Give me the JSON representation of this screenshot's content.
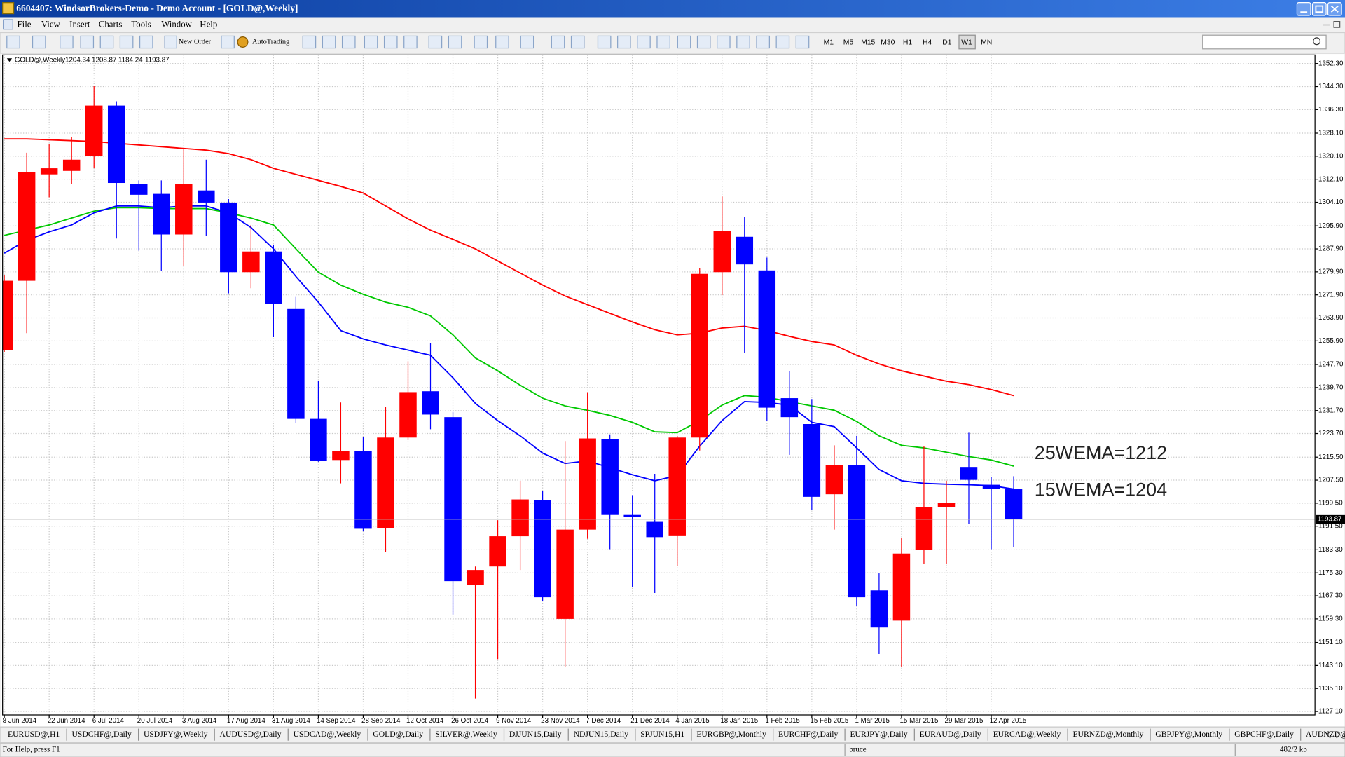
{
  "window": {
    "title": "6604407: WindsorBrokers-Demo - Demo Account - [GOLD@,Weekly]",
    "menu": [
      "File",
      "View",
      "Insert",
      "Charts",
      "Tools",
      "Window",
      "Help"
    ],
    "toolbar": {
      "new_order": "New Order",
      "autotrading": "AutoTrading",
      "timeframes": [
        "M1",
        "M5",
        "M15",
        "M30",
        "H1",
        "H4",
        "D1",
        "W1",
        "MN"
      ]
    },
    "tabs": [
      "EURUSD@,H1",
      "USDCHF@,Daily",
      "USDJPY@,Weekly",
      "AUDUSD@,Daily",
      "USDCAD@,Weekly",
      "GOLD@,Daily",
      "SILVER@,Weekly",
      "DJJUN15,Daily",
      "NDJUN15,Daily",
      "SPJUN15,H1",
      "EURGBP@,Monthly",
      "EURCHF@,Daily",
      "EURJPY@,Daily",
      "EURAUD@,Daily",
      "EURCAD@,Weekly",
      "EURNZD@,Monthly",
      "GBPJPY@,Monthly",
      "GBPCHF@,Daily",
      "AUDNZD@"
    ],
    "status": {
      "help": "For Help, press F1",
      "profile": "bruce",
      "traffic": "482/2 kb"
    }
  },
  "chart_data": {
    "type": "candlestick",
    "title": "GOLD@,Weekly",
    "categories": [
      "8 Jun 2014",
      null,
      "22 Jun 2014",
      null,
      "6 Jul 2014",
      null,
      "20 Jul 2014",
      null,
      "3 Aug 2014",
      null,
      "17 Aug 2014",
      null,
      "31 Aug 2014",
      null,
      "14 Sep 2014",
      null,
      "28 Sep 2014",
      null,
      "12 Oct 2014",
      null,
      "26 Oct 2014",
      null,
      "9 Nov 2014",
      null,
      "23 Nov 2014",
      null,
      "7 Dec 2014",
      null,
      "21 Dec 2014",
      null,
      "4 Jan 2015",
      null,
      "18 Jan 2015",
      null,
      "1 Feb 2015",
      null,
      "15 Feb 2015",
      null,
      "1 Mar 2015",
      null,
      "15 Mar 2015",
      null,
      "29 Mar 2015",
      null,
      "12 Apr 2015",
      null
    ],
    "candles": [
      {
        "open": 1252.7,
        "high": 1278.9,
        "low": 1252.1,
        "close": 1276.8
      },
      {
        "open": 1276.8,
        "high": 1321.3,
        "low": 1258.6,
        "close": 1314.7
      },
      {
        "open": 1313.8,
        "high": 1324.3,
        "low": 1305.8,
        "close": 1315.9
      },
      {
        "open": 1315.0,
        "high": 1326.7,
        "low": 1310.5,
        "close": 1318.9
      },
      {
        "open": 1320.1,
        "high": 1344.6,
        "low": 1315.9,
        "close": 1337.7
      },
      {
        "open": 1337.7,
        "high": 1339.2,
        "low": 1291.5,
        "close": 1310.8
      },
      {
        "open": 1310.5,
        "high": 1311.7,
        "low": 1287.3,
        "close": 1306.7
      },
      {
        "open": 1307.0,
        "high": 1311.7,
        "low": 1280.1,
        "close": 1292.9
      },
      {
        "open": 1292.9,
        "high": 1322.8,
        "low": 1281.9,
        "close": 1310.5
      },
      {
        "open": 1308.2,
        "high": 1318.9,
        "low": 1292.4,
        "close": 1304.0
      },
      {
        "open": 1304.0,
        "high": 1305.2,
        "low": 1272.4,
        "close": 1279.8
      },
      {
        "open": 1279.8,
        "high": 1296.2,
        "low": 1274.2,
        "close": 1287.0
      },
      {
        "open": 1287.0,
        "high": 1289.4,
        "low": 1257.2,
        "close": 1268.8
      },
      {
        "open": 1267.0,
        "high": 1271.2,
        "low": 1227.3,
        "close": 1228.8
      },
      {
        "open": 1228.8,
        "high": 1241.9,
        "low": 1213.9,
        "close": 1214.2
      },
      {
        "open": 1214.5,
        "high": 1234.5,
        "low": 1206.4,
        "close": 1217.5
      },
      {
        "open": 1217.5,
        "high": 1222.6,
        "low": 1189.7,
        "close": 1190.6
      },
      {
        "open": 1190.9,
        "high": 1233.0,
        "low": 1182.6,
        "close": 1222.3
      },
      {
        "open": 1222.3,
        "high": 1248.8,
        "low": 1221.4,
        "close": 1238.1
      },
      {
        "open": 1238.4,
        "high": 1255.1,
        "low": 1225.2,
        "close": 1230.3
      },
      {
        "open": 1229.4,
        "high": 1231.2,
        "low": 1160.8,
        "close": 1172.4
      },
      {
        "open": 1171.0,
        "high": 1177.5,
        "low": 1131.6,
        "close": 1176.3
      },
      {
        "open": 1177.5,
        "high": 1193.6,
        "low": 1145.3,
        "close": 1188.0
      },
      {
        "open": 1188.0,
        "high": 1207.3,
        "low": 1176.3,
        "close": 1200.8
      },
      {
        "open": 1200.5,
        "high": 1203.8,
        "low": 1165.6,
        "close": 1166.8
      },
      {
        "open": 1159.3,
        "high": 1221.1,
        "low": 1142.6,
        "close": 1190.3
      },
      {
        "open": 1190.3,
        "high": 1238.1,
        "low": 1187.1,
        "close": 1222.0
      },
      {
        "open": 1221.7,
        "high": 1223.4,
        "low": 1183.5,
        "close": 1195.4
      },
      {
        "open": 1195.4,
        "high": 1202.3,
        "low": 1170.4,
        "close": 1194.8
      },
      {
        "open": 1193.0,
        "high": 1209.7,
        "low": 1168.3,
        "close": 1187.7
      },
      {
        "open": 1188.3,
        "high": 1222.9,
        "low": 1177.8,
        "close": 1222.3
      },
      {
        "open": 1222.3,
        "high": 1281.3,
        "low": 1217.8,
        "close": 1279.2
      },
      {
        "open": 1279.8,
        "high": 1306.1,
        "low": 1271.8,
        "close": 1294.1
      },
      {
        "open": 1292.1,
        "high": 1298.9,
        "low": 1251.8,
        "close": 1282.5
      },
      {
        "open": 1280.4,
        "high": 1284.9,
        "low": 1228.2,
        "close": 1232.7
      },
      {
        "open": 1236.0,
        "high": 1245.5,
        "low": 1216.3,
        "close": 1229.4
      },
      {
        "open": 1227.0,
        "high": 1235.7,
        "low": 1197.2,
        "close": 1201.7
      },
      {
        "open": 1202.6,
        "high": 1219.6,
        "low": 1190.3,
        "close": 1212.7
      },
      {
        "open": 1212.7,
        "high": 1222.9,
        "low": 1163.8,
        "close": 1166.8
      },
      {
        "open": 1169.2,
        "high": 1175.1,
        "low": 1147.1,
        "close": 1156.3
      },
      {
        "open": 1158.7,
        "high": 1187.4,
        "low": 1142.6,
        "close": 1182.0
      },
      {
        "open": 1183.2,
        "high": 1219.3,
        "low": 1178.4,
        "close": 1198.1
      },
      {
        "open": 1198.1,
        "high": 1207.3,
        "low": 1178.4,
        "close": 1199.6
      },
      {
        "open": 1212.1,
        "high": 1224.0,
        "low": 1192.4,
        "close": 1207.6
      },
      {
        "open": 1205.9,
        "high": 1208.5,
        "low": 1183.5,
        "close": 1204.4
      },
      {
        "open": 1204.34,
        "high": 1208.87,
        "low": 1184.24,
        "close": 1193.87
      }
    ],
    "up_color": "#ff0000",
    "down_color": "#0000ff",
    "lines": [
      {
        "color": "#ff0000",
        "values": [
          1326.1,
          1326.1,
          1325.8,
          1325.5,
          1325.2,
          1324.6,
          1324.0,
          1323.4,
          1322.8,
          1322.2,
          1321.0,
          1318.9,
          1315.9,
          1313.8,
          1311.7,
          1309.6,
          1307.3,
          1302.8,
          1298.3,
          1294.4,
          1291.2,
          1287.9,
          1283.7,
          1279.5,
          1275.3,
          1271.5,
          1268.5,
          1265.5,
          1262.5,
          1259.8,
          1258.0,
          1258.6,
          1260.4,
          1261.0,
          1259.5,
          1257.5,
          1255.7,
          1254.5,
          1250.9,
          1247.9,
          1245.5,
          1243.7,
          1241.9,
          1240.7,
          1239.0,
          1236.9
        ]
      },
      {
        "color": "#00c800",
        "values": [
          1292.6,
          1294.4,
          1296.2,
          1298.6,
          1301.0,
          1302.2,
          1302.2,
          1301.9,
          1301.9,
          1301.9,
          1300.4,
          1298.6,
          1296.2,
          1287.9,
          1279.8,
          1275.3,
          1272.1,
          1269.4,
          1267.6,
          1264.6,
          1258.0,
          1250.0,
          1245.5,
          1240.5,
          1236.0,
          1233.3,
          1231.8,
          1230.0,
          1227.6,
          1224.3,
          1224.0,
          1228.2,
          1233.6,
          1236.9,
          1236.3,
          1234.8,
          1233.3,
          1231.8,
          1227.9,
          1222.9,
          1219.6,
          1218.7,
          1217.2,
          1215.7,
          1214.5,
          1212.4
        ]
      },
      {
        "color": "#0000ff",
        "values": [
          1286.4,
          1290.9,
          1293.8,
          1296.2,
          1300.4,
          1302.8,
          1302.8,
          1302.2,
          1302.8,
          1302.8,
          1300.4,
          1295.3,
          1287.9,
          1278.3,
          1269.4,
          1259.5,
          1256.6,
          1254.5,
          1252.7,
          1250.9,
          1243.1,
          1234.2,
          1228.2,
          1222.9,
          1216.9,
          1213.3,
          1214.2,
          1211.8,
          1209.4,
          1207.3,
          1209.1,
          1219.3,
          1228.2,
          1234.8,
          1234.5,
          1233.6,
          1227.6,
          1226.1,
          1218.7,
          1211.2,
          1207.3,
          1206.4,
          1206.1,
          1205.9,
          1205.6,
          1204.4
        ]
      }
    ],
    "annotations": [
      "25WEMA=1212",
      "15WEMA=1204"
    ],
    "ylim": [
      1125.9,
      1354.7
    ],
    "yticks": [
      {
        "value": 1127.1,
        "label": "1127.10"
      },
      {
        "value": 1135.1,
        "label": "1135.10"
      },
      {
        "value": 1143.1,
        "label": "1143.10"
      },
      {
        "value": 1151.1,
        "label": "1151.10"
      },
      {
        "value": 1159.3,
        "label": "1159.30"
      },
      {
        "value": 1167.3,
        "label": "1167.30"
      },
      {
        "value": 1175.3,
        "label": "1175.30"
      },
      {
        "value": 1183.3,
        "label": "1183.30"
      },
      {
        "value": 1191.5,
        "label": "1191.50"
      },
      {
        "value": 1199.5,
        "label": "1199.50"
      },
      {
        "value": 1207.5,
        "label": "1207.50"
      },
      {
        "value": 1215.5,
        "label": "1215.50"
      },
      {
        "value": 1223.7,
        "label": "1223.70"
      },
      {
        "value": 1231.7,
        "label": "1231.70"
      },
      {
        "value": 1239.7,
        "label": "1239.70"
      },
      {
        "value": 1247.7,
        "label": "1247.70"
      },
      {
        "value": 1255.9,
        "label": "1255.90"
      },
      {
        "value": 1263.9,
        "label": "1263.90"
      },
      {
        "value": 1271.9,
        "label": "1271.90"
      },
      {
        "value": 1279.9,
        "label": "1279.90"
      },
      {
        "value": 1287.9,
        "label": "1287.90"
      },
      {
        "value": 1295.9,
        "label": "1295.90"
      },
      {
        "value": 1304.1,
        "label": "1304.10"
      },
      {
        "value": 1312.1,
        "label": "1312.10"
      },
      {
        "value": 1320.1,
        "label": "1320.10"
      },
      {
        "value": 1328.1,
        "label": "1328.10"
      },
      {
        "value": 1336.3,
        "label": "1336.30"
      },
      {
        "value": 1344.3,
        "label": "1344.30"
      },
      {
        "value": 1352.3,
        "label": "1352.30"
      }
    ],
    "grid": true
  }
}
